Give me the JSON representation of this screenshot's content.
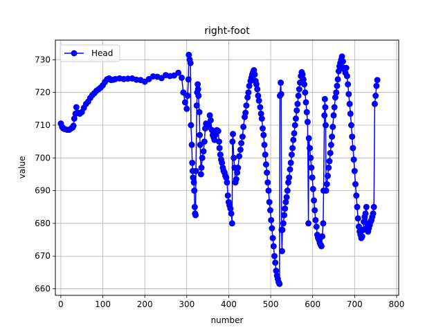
{
  "chart_data": {
    "type": "line",
    "title": "right-foot",
    "xlabel": "number",
    "ylabel": "value",
    "xlim": [
      -13,
      805
    ],
    "ylim": [
      658,
      736
    ],
    "x_ticks": [
      0,
      100,
      200,
      300,
      400,
      500,
      600,
      700,
      800
    ],
    "y_ticks": [
      660,
      670,
      680,
      690,
      700,
      710,
      720,
      730
    ],
    "grid": true,
    "legend_position": "top-left",
    "series": [
      {
        "name": "Head",
        "color": "#0000ff",
        "marker": "circle",
        "points": [
          [
            0,
            710.5
          ],
          [
            3,
            709.5
          ],
          [
            6,
            709
          ],
          [
            10,
            708.8
          ],
          [
            15,
            708.6
          ],
          [
            20,
            708.6
          ],
          [
            25,
            709
          ],
          [
            28,
            709.3
          ],
          [
            30,
            709.8
          ],
          [
            32,
            712
          ],
          [
            35,
            713.5
          ],
          [
            37,
            715.5
          ],
          [
            40,
            713.8
          ],
          [
            45,
            713.5
          ],
          [
            50,
            714
          ],
          [
            55,
            715.3
          ],
          [
            60,
            716.5
          ],
          [
            65,
            717.2
          ],
          [
            70,
            718.3
          ],
          [
            75,
            719.2
          ],
          [
            80,
            719.8
          ],
          [
            85,
            720.5
          ],
          [
            90,
            721
          ],
          [
            95,
            721.5
          ],
          [
            100,
            722.2
          ],
          [
            105,
            723.2
          ],
          [
            110,
            724
          ],
          [
            115,
            724.3
          ],
          [
            120,
            723.8
          ],
          [
            125,
            723.9
          ],
          [
            130,
            724.1
          ],
          [
            140,
            724.3
          ],
          [
            150,
            724.1
          ],
          [
            160,
            724.2
          ],
          [
            170,
            724.3
          ],
          [
            180,
            723.9
          ],
          [
            190,
            723.8
          ],
          [
            200,
            723.3
          ],
          [
            210,
            724.1
          ],
          [
            220,
            724.9
          ],
          [
            230,
            724.8
          ],
          [
            240,
            724.4
          ],
          [
            250,
            725.3
          ],
          [
            260,
            725
          ],
          [
            270,
            725.2
          ],
          [
            280,
            726
          ],
          [
            288,
            724.5
          ],
          [
            292,
            720
          ],
          [
            296,
            717
          ],
          [
            300,
            715
          ],
          [
            302,
            719
          ],
          [
            304,
            724
          ],
          [
            305,
            731.5
          ],
          [
            307,
            730
          ],
          [
            309,
            729
          ],
          [
            310,
            710
          ],
          [
            312,
            704
          ],
          [
            313,
            698.5
          ],
          [
            314,
            696
          ],
          [
            315,
            694
          ],
          [
            317,
            692.5
          ],
          [
            318,
            690
          ],
          [
            319,
            685
          ],
          [
            320,
            683
          ],
          [
            321,
            682.5
          ],
          [
            322,
            696
          ],
          [
            324,
            716
          ],
          [
            325,
            720
          ],
          [
            326,
            722.5
          ],
          [
            327,
            721
          ],
          [
            328,
            719
          ],
          [
            330,
            714
          ],
          [
            331,
            707
          ],
          [
            332,
            704
          ],
          [
            334,
            695
          ],
          [
            335,
            697
          ],
          [
            337,
            700
          ],
          [
            340,
            702
          ],
          [
            342,
            705
          ],
          [
            344,
            709
          ],
          [
            346,
            710.5
          ],
          [
            348,
            710
          ],
          [
            350,
            710.2
          ],
          [
            352,
            709.5
          ],
          [
            355,
            713
          ],
          [
            357,
            711.5
          ],
          [
            360,
            708.5
          ],
          [
            362,
            707
          ],
          [
            364,
            706.3
          ],
          [
            366,
            705.5
          ],
          [
            368,
            707
          ],
          [
            370,
            708
          ],
          [
            372,
            708.5
          ],
          [
            375,
            708.2
          ],
          [
            377,
            705
          ],
          [
            378,
            703
          ],
          [
            380,
            701
          ],
          [
            382,
            699.5
          ],
          [
            384,
            698.5
          ],
          [
            386,
            697
          ],
          [
            388,
            696
          ],
          [
            390,
            695.5
          ],
          [
            392,
            694.5
          ],
          [
            394,
            694
          ],
          [
            396,
            692.5
          ],
          [
            398,
            688.5
          ],
          [
            400,
            686.5
          ],
          [
            402,
            685.5
          ],
          [
            404,
            684.5
          ],
          [
            406,
            683
          ],
          [
            408,
            680
          ],
          [
            409,
            705
          ],
          [
            410,
            707.3
          ],
          [
            412,
            700
          ],
          [
            414,
            697
          ],
          [
            416,
            692.5
          ],
          [
            418,
            693.5
          ],
          [
            420,
            695.5
          ],
          [
            422,
            697
          ],
          [
            425,
            700.5
          ],
          [
            428,
            702.5
          ],
          [
            430,
            704.5
          ],
          [
            433,
            706.5
          ],
          [
            435,
            709.5
          ],
          [
            438,
            712.5
          ],
          [
            440,
            713.8
          ],
          [
            442,
            716
          ],
          [
            445,
            718.5
          ],
          [
            447,
            720
          ],
          [
            449,
            722
          ],
          [
            452,
            723.5
          ],
          [
            454,
            724.5
          ],
          [
            456,
            725.5
          ],
          [
            458,
            726.2
          ],
          [
            460,
            726.8
          ],
          [
            462,
            725.5
          ],
          [
            464,
            723.5
          ],
          [
            466,
            722.5
          ],
          [
            468,
            721
          ],
          [
            470,
            719
          ],
          [
            472,
            717.5
          ],
          [
            475,
            715.5
          ],
          [
            477,
            713.5
          ],
          [
            479,
            712
          ],
          [
            481,
            709
          ],
          [
            483,
            707
          ],
          [
            485,
            704
          ],
          [
            487,
            701
          ],
          [
            489,
            698
          ],
          [
            491,
            695.5
          ],
          [
            493,
            692.5
          ],
          [
            495,
            690
          ],
          [
            497,
            686.5
          ],
          [
            499,
            684
          ],
          [
            501,
            681
          ],
          [
            503,
            678.5
          ],
          [
            505,
            675.5
          ],
          [
            507,
            673
          ],
          [
            509,
            670
          ],
          [
            511,
            668
          ],
          [
            513,
            665.5
          ],
          [
            515,
            664
          ],
          [
            517,
            663
          ],
          [
            519,
            662
          ],
          [
            521,
            661.5
          ],
          [
            522,
            719
          ],
          [
            524,
            723
          ],
          [
            525,
            719.5
          ],
          [
            526,
            678
          ],
          [
            527,
            671.5
          ],
          [
            528,
            678
          ],
          [
            530,
            680
          ],
          [
            532,
            682.5
          ],
          [
            534,
            684.5
          ],
          [
            536,
            686.5
          ],
          [
            538,
            688
          ],
          [
            540,
            690
          ],
          [
            542,
            692.5
          ],
          [
            544,
            694
          ],
          [
            546,
            696.5
          ],
          [
            548,
            698.5
          ],
          [
            550,
            701
          ],
          [
            552,
            703
          ],
          [
            554,
            705.5
          ],
          [
            556,
            707.5
          ],
          [
            558,
            710
          ],
          [
            560,
            712
          ],
          [
            562,
            714.5
          ],
          [
            564,
            716.5
          ],
          [
            566,
            719
          ],
          [
            568,
            721
          ],
          [
            570,
            723
          ],
          [
            572,
            725
          ],
          [
            574,
            726.2
          ],
          [
            576,
            725.5
          ],
          [
            578,
            724
          ],
          [
            580,
            722.5
          ],
          [
            582,
            720
          ],
          [
            584,
            717
          ],
          [
            586,
            714
          ],
          [
            588,
            711
          ],
          [
            590,
            680
          ],
          [
            591,
            706
          ],
          [
            593,
            703
          ],
          [
            595,
            700
          ],
          [
            597,
            697
          ],
          [
            599,
            694
          ],
          [
            601,
            690.5
          ],
          [
            603,
            687
          ],
          [
            605,
            684
          ],
          [
            607,
            681
          ],
          [
            609,
            679
          ],
          [
            611,
            676.5
          ],
          [
            613,
            675.5
          ],
          [
            615,
            675
          ],
          [
            617,
            674
          ],
          [
            619,
            673.5
          ],
          [
            621,
            673
          ],
          [
            623,
            676
          ],
          [
            625,
            680
          ],
          [
            626,
            690
          ],
          [
            628,
            713
          ],
          [
            629,
            718
          ],
          [
            630,
            715.5
          ],
          [
            631,
            710
          ],
          [
            632,
            690
          ],
          [
            634,
            692
          ],
          [
            636,
            694.5
          ],
          [
            638,
            697
          ],
          [
            640,
            699
          ],
          [
            642,
            701.5
          ],
          [
            644,
            704
          ],
          [
            646,
            706.5
          ],
          [
            648,
            709.5
          ],
          [
            650,
            713
          ],
          [
            652,
            715.5
          ],
          [
            654,
            718.5
          ],
          [
            656,
            720
          ],
          [
            658,
            722
          ],
          [
            660,
            724
          ],
          [
            662,
            726.5
          ],
          [
            664,
            728
          ],
          [
            666,
            729
          ],
          [
            668,
            730
          ],
          [
            670,
            731
          ],
          [
            672,
            729.5
          ],
          [
            674,
            727.5
          ],
          [
            676,
            727
          ],
          [
            678,
            726
          ],
          [
            680,
            727.5
          ],
          [
            682,
            725
          ],
          [
            684,
            722.5
          ],
          [
            686,
            719.5
          ],
          [
            688,
            716.5
          ],
          [
            690,
            713.5
          ],
          [
            692,
            710
          ],
          [
            694,
            706.5
          ],
          [
            696,
            703
          ],
          [
            698,
            699.5
          ],
          [
            700,
            696
          ],
          [
            702,
            692
          ],
          [
            704,
            688.5
          ],
          [
            706,
            685
          ],
          [
            708,
            681.5
          ],
          [
            710,
            679
          ],
          [
            712,
            677.5
          ],
          [
            714,
            676.5
          ],
          [
            716,
            675.5
          ],
          [
            718,
            676
          ],
          [
            720,
            678
          ],
          [
            722,
            680.5
          ],
          [
            724,
            682
          ],
          [
            726,
            683
          ],
          [
            728,
            685
          ],
          [
            730,
            679
          ],
          [
            732,
            677.5
          ],
          [
            734,
            678.5
          ],
          [
            736,
            679.5
          ],
          [
            738,
            680.5
          ],
          [
            740,
            681
          ],
          [
            742,
            682
          ],
          [
            744,
            683
          ],
          [
            746,
            685
          ],
          [
            748,
            716.5
          ],
          [
            750,
            719
          ],
          [
            752,
            722
          ],
          [
            754,
            723.8
          ]
        ]
      }
    ]
  }
}
